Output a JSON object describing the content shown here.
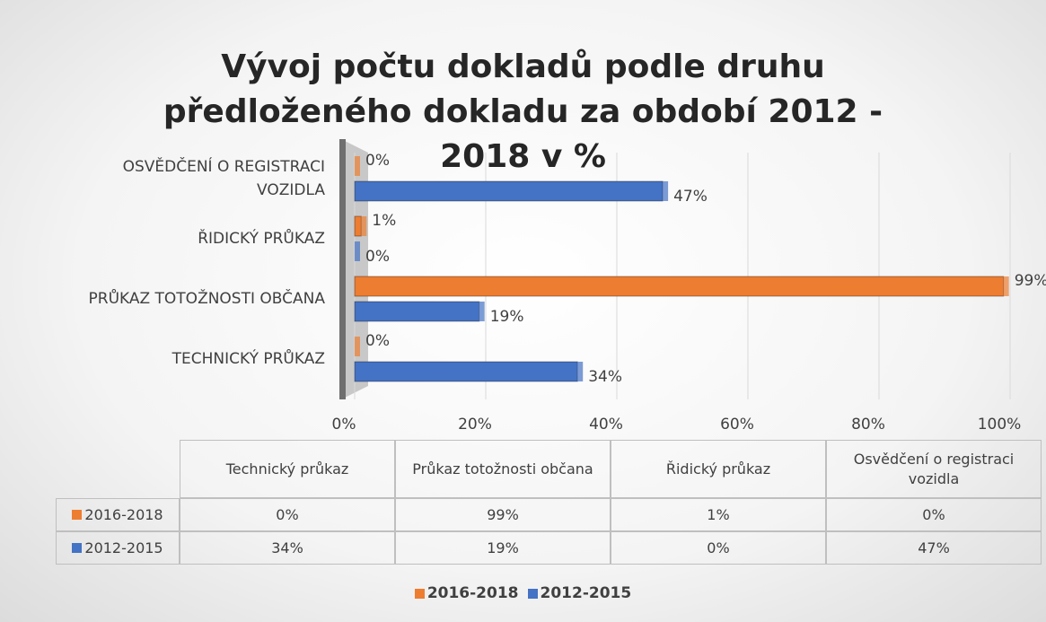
{
  "chart_data": {
    "type": "bar",
    "orientation": "horizontal",
    "title": "Vývoj počtu dokladů podle druhu předloženého dokladu za období 2012 - 2018 v %",
    "categories": [
      "TECHNICKÝ PRŮKAZ",
      "PRŮKAZ TOTOŽNOSTI OBČANA",
      "ŘIDICKÝ PRŮKAZ",
      "OSVĚDČENÍ O REGISTRACI VOZIDLA"
    ],
    "table_headers": [
      "Technický průkaz",
      "Průkaz totožnosti občana",
      "Řidický průkaz",
      "Osvědčení o registraci vozidla"
    ],
    "series": [
      {
        "name": "2016-2018",
        "color": "#ED7D31",
        "values": [
          0,
          99,
          1,
          0
        ],
        "value_labels": [
          "0%",
          "99%",
          "1%",
          "0%"
        ]
      },
      {
        "name": "2012-2015",
        "color": "#4472C4",
        "values": [
          34,
          19,
          0,
          47
        ],
        "value_labels": [
          "34%",
          "19%",
          "0%",
          "47%"
        ]
      }
    ],
    "xlim": [
      0,
      100
    ],
    "xticks": [
      {
        "value": 0,
        "label": "0%"
      },
      {
        "value": 20,
        "label": "20%"
      },
      {
        "value": 40,
        "label": "40%"
      },
      {
        "value": 60,
        "label": "60%"
      },
      {
        "value": 80,
        "label": "80%"
      },
      {
        "value": 100,
        "label": "100%"
      }
    ],
    "grid": true,
    "legend": "bottom"
  }
}
